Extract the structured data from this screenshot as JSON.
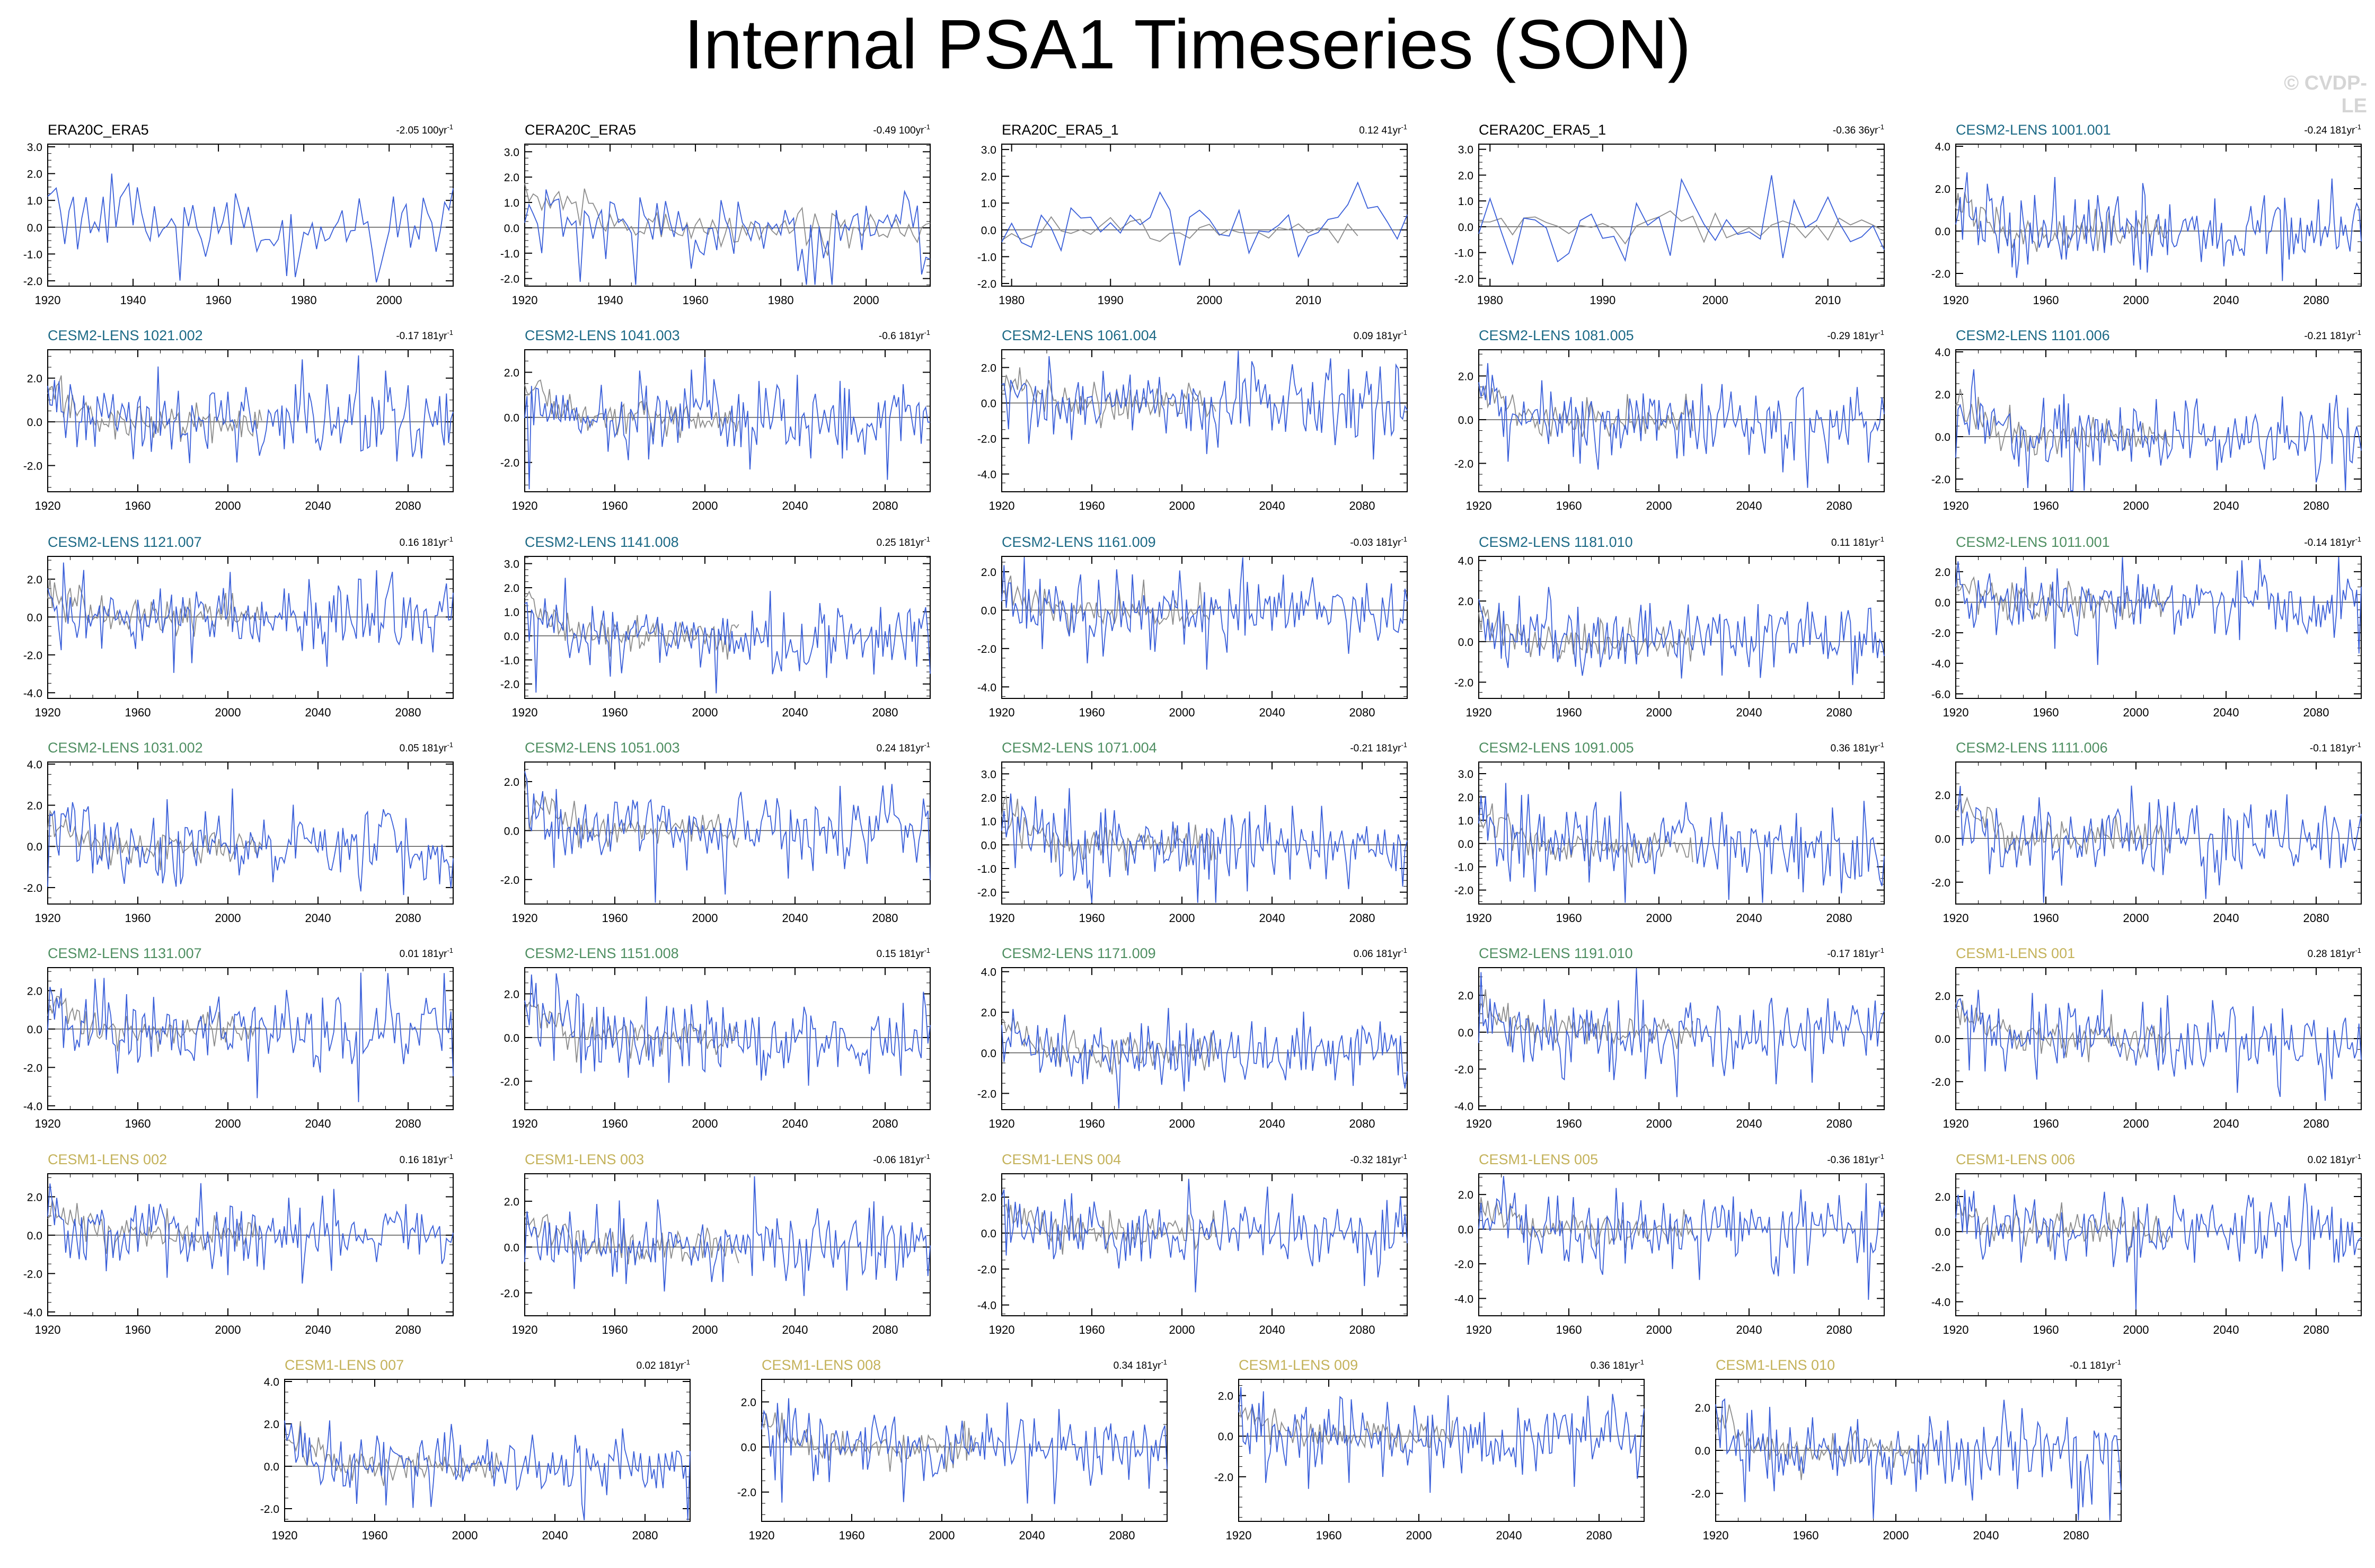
{
  "title": "Internal PSA1 Timeseries (SON)",
  "watermark": "© CVDP-LE",
  "colors": {
    "model": "#3a5fd9",
    "observed": "#8c8c8c",
    "zero": "#555555",
    "obs_label": "#000000",
    "cesm2_a": "#1d6a86",
    "cesm2_b": "#4f8f62",
    "cesm1": "#c4b25a"
  },
  "chart_data": [
    {
      "type": "line",
      "title": "ERA20C_ERA5",
      "trend": "-2.05 100yr",
      "xlim": [
        1920,
        2015
      ],
      "xticks": [
        1920,
        1940,
        1960,
        1980,
        2000
      ],
      "yticks": [
        -2.0,
        -1.0,
        0.0,
        1.0,
        2.0,
        3.0
      ],
      "ylim": [
        -2.2,
        3.1
      ],
      "gray": false
    },
    {
      "type": "line",
      "title": "CERA20C_ERA5",
      "trend": "-0.49 100yr",
      "xlim": [
        1920,
        2015
      ],
      "xticks": [
        1920,
        1940,
        1960,
        1980,
        2000
      ],
      "yticks": [
        -2.0,
        -1.0,
        0.0,
        1.0,
        2.0,
        3.0
      ],
      "ylim": [
        -2.3,
        3.3
      ],
      "gray": true
    },
    {
      "type": "line",
      "title": "ERA20C_ERA5_1",
      "trend": "0.12 41yr",
      "xlim": [
        1979,
        2020
      ],
      "xticks": [
        1980,
        1990,
        2000,
        2010
      ],
      "yticks": [
        -2.0,
        -1.0,
        0.0,
        1.0,
        2.0,
        3.0
      ],
      "ylim": [
        -2.1,
        3.2
      ],
      "gray": true
    },
    {
      "type": "line",
      "title": "CERA20C_ERA5_1",
      "trend": "-0.36 36yr",
      "xlim": [
        1979,
        2015
      ],
      "xticks": [
        1980,
        1990,
        2000,
        2010
      ],
      "yticks": [
        -2.0,
        -1.0,
        0.0,
        1.0,
        2.0,
        3.0
      ],
      "ylim": [
        -2.3,
        3.2
      ],
      "gray": true
    },
    {
      "type": "line",
      "title": "CESM2-LENS 1001.001",
      "trend": "-0.24 181yr",
      "xlim": [
        1920,
        2100
      ],
      "xticks": [
        1920,
        1960,
        2000,
        2040,
        2080
      ],
      "yticks": [
        -2.0,
        0.0,
        2.0,
        4.0
      ],
      "ylim": [
        -2.6,
        4.1
      ],
      "gray": true
    },
    {
      "type": "line",
      "title": "CESM2-LENS 1021.002",
      "trend": "-0.17 181yr",
      "xlim": [
        1920,
        2100
      ],
      "xticks": [
        1920,
        1960,
        2000,
        2040,
        2080
      ],
      "yticks": [
        -2.0,
        0.0,
        2.0
      ],
      "ylim": [
        -3.2,
        3.3
      ],
      "gray": true
    },
    {
      "type": "line",
      "title": "CESM2-LENS 1041.003",
      "trend": "-0.6 181yr",
      "xlim": [
        1920,
        2100
      ],
      "xticks": [
        1920,
        1960,
        2000,
        2040,
        2080
      ],
      "yticks": [
        -2.0,
        0.0,
        2.0
      ],
      "ylim": [
        -3.3,
        3.0
      ],
      "gray": true
    },
    {
      "type": "line",
      "title": "CESM2-LENS 1061.004",
      "trend": "0.09 181yr",
      "xlim": [
        1920,
        2100
      ],
      "xticks": [
        1920,
        1960,
        2000,
        2040,
        2080
      ],
      "yticks": [
        -4.0,
        -2.0,
        0.0,
        2.0
      ],
      "ylim": [
        -5.0,
        3.0
      ],
      "gray": true
    },
    {
      "type": "line",
      "title": "CESM2-LENS 1081.005",
      "trend": "-0.29 181yr",
      "xlim": [
        1920,
        2100
      ],
      "xticks": [
        1920,
        1960,
        2000,
        2040,
        2080
      ],
      "yticks": [
        -2.0,
        0.0,
        2.0
      ],
      "ylim": [
        -3.3,
        3.2
      ],
      "gray": true
    },
    {
      "type": "line",
      "title": "CESM2-LENS 1101.006",
      "trend": "-0.21 181yr",
      "xlim": [
        1920,
        2100
      ],
      "xticks": [
        1920,
        1960,
        2000,
        2040,
        2080
      ],
      "yticks": [
        -2.0,
        0.0,
        2.0,
        4.0
      ],
      "ylim": [
        -2.6,
        4.1
      ],
      "gray": true
    },
    {
      "type": "line",
      "title": "CESM2-LENS 1121.007",
      "trend": "0.16 181yr",
      "xlim": [
        1920,
        2100
      ],
      "xticks": [
        1920,
        1960,
        2000,
        2040,
        2080
      ],
      "yticks": [
        -4.0,
        -2.0,
        0.0,
        2.0
      ],
      "ylim": [
        -4.3,
        3.2
      ],
      "gray": true
    },
    {
      "type": "line",
      "title": "CESM2-LENS 1141.008",
      "trend": "0.25 181yr",
      "xlim": [
        1920,
        2100
      ],
      "xticks": [
        1920,
        1960,
        2000,
        2040,
        2080
      ],
      "yticks": [
        -2.0,
        -1.0,
        0.0,
        1.0,
        2.0,
        3.0
      ],
      "ylim": [
        -2.6,
        3.3
      ],
      "gray": true
    },
    {
      "type": "line",
      "title": "CESM2-LENS 1161.009",
      "trend": "-0.03 181yr",
      "xlim": [
        1920,
        2100
      ],
      "xticks": [
        1920,
        1960,
        2000,
        2040,
        2080
      ],
      "yticks": [
        -4.0,
        -2.0,
        0.0,
        2.0
      ],
      "ylim": [
        -4.6,
        2.8
      ],
      "gray": true
    },
    {
      "type": "line",
      "title": "CESM2-LENS 1181.010",
      "trend": "0.11 181yr",
      "xlim": [
        1920,
        2100
      ],
      "xticks": [
        1920,
        1960,
        2000,
        2040,
        2080
      ],
      "yticks": [
        -2.0,
        0.0,
        2.0,
        4.0
      ],
      "ylim": [
        -2.8,
        4.2
      ],
      "gray": true
    },
    {
      "type": "line",
      "title": "CESM2-LENS 1011.001",
      "trend": "-0.14 181yr",
      "xlim": [
        1920,
        2100
      ],
      "xticks": [
        1920,
        1960,
        2000,
        2040,
        2080
      ],
      "yticks": [
        -6.0,
        -4.0,
        -2.0,
        0.0,
        2.0
      ],
      "ylim": [
        -6.3,
        3.0
      ],
      "gray": true
    },
    {
      "type": "line",
      "title": "CESM2-LENS 1031.002",
      "trend": "0.05 181yr",
      "xlim": [
        1920,
        2100
      ],
      "xticks": [
        1920,
        1960,
        2000,
        2040,
        2080
      ],
      "yticks": [
        -2.0,
        0.0,
        2.0,
        4.0
      ],
      "ylim": [
        -2.8,
        4.1
      ],
      "gray": true
    },
    {
      "type": "line",
      "title": "CESM2-LENS 1051.003",
      "trend": "0.24 181yr",
      "xlim": [
        1920,
        2100
      ],
      "xticks": [
        1920,
        1960,
        2000,
        2040,
        2080
      ],
      "yticks": [
        -2.0,
        0.0,
        2.0
      ],
      "ylim": [
        -3.0,
        2.8
      ],
      "gray": true
    },
    {
      "type": "line",
      "title": "CESM2-LENS 1071.004",
      "trend": "-0.21 181yr",
      "xlim": [
        1920,
        2100
      ],
      "xticks": [
        1920,
        1960,
        2000,
        2040,
        2080
      ],
      "yticks": [
        -2.0,
        -1.0,
        0.0,
        1.0,
        2.0,
        3.0
      ],
      "ylim": [
        -2.5,
        3.5
      ],
      "gray": true
    },
    {
      "type": "line",
      "title": "CESM2-LENS 1091.005",
      "trend": "0.36 181yr",
      "xlim": [
        1920,
        2100
      ],
      "xticks": [
        1920,
        1960,
        2000,
        2040,
        2080
      ],
      "yticks": [
        -2.0,
        -1.0,
        0.0,
        1.0,
        2.0,
        3.0
      ],
      "ylim": [
        -2.6,
        3.5
      ],
      "gray": true
    },
    {
      "type": "line",
      "title": "CESM2-LENS 1111.006",
      "trend": "-0.1 181yr",
      "xlim": [
        1920,
        2100
      ],
      "xticks": [
        1920,
        1960,
        2000,
        2040,
        2080
      ],
      "yticks": [
        -2.0,
        0.0,
        2.0
      ],
      "ylim": [
        -3.0,
        3.5
      ],
      "gray": true
    },
    {
      "type": "line",
      "title": "CESM2-LENS 1131.007",
      "trend": "0.01 181yr",
      "xlim": [
        1920,
        2100
      ],
      "xticks": [
        1920,
        1960,
        2000,
        2040,
        2080
      ],
      "yticks": [
        -4.0,
        -2.0,
        0.0,
        2.0
      ],
      "ylim": [
        -4.2,
        3.2
      ],
      "gray": true
    },
    {
      "type": "line",
      "title": "CESM2-LENS 1151.008",
      "trend": "0.15 181yr",
      "xlim": [
        1920,
        2100
      ],
      "xticks": [
        1920,
        1960,
        2000,
        2040,
        2080
      ],
      "yticks": [
        -2.0,
        0.0,
        2.0
      ],
      "ylim": [
        -3.3,
        3.2
      ],
      "gray": true
    },
    {
      "type": "line",
      "title": "CESM2-LENS 1171.009",
      "trend": "0.06 181yr",
      "xlim": [
        1920,
        2100
      ],
      "xticks": [
        1920,
        1960,
        2000,
        2040,
        2080
      ],
      "yticks": [
        -2.0,
        0.0,
        2.0,
        4.0
      ],
      "ylim": [
        -2.8,
        4.2
      ],
      "gray": true
    },
    {
      "type": "line",
      "title": "CESM2-LENS 1191.010",
      "trend": "-0.17 181yr",
      "xlim": [
        1920,
        2100
      ],
      "xticks": [
        1920,
        1960,
        2000,
        2040,
        2080
      ],
      "yticks": [
        -4.0,
        -2.0,
        0.0,
        2.0
      ],
      "ylim": [
        -4.2,
        3.5
      ],
      "gray": true
    },
    {
      "type": "line",
      "title": "CESM1-LENS 001",
      "trend": "0.28 181yr",
      "xlim": [
        1920,
        2100
      ],
      "xticks": [
        1920,
        1960,
        2000,
        2040,
        2080
      ],
      "yticks": [
        -2.0,
        0.0,
        2.0
      ],
      "ylim": [
        -3.3,
        3.3
      ],
      "gray": true
    },
    {
      "type": "line",
      "title": "CESM1-LENS 002",
      "trend": "0.16 181yr",
      "xlim": [
        1920,
        2100
      ],
      "xticks": [
        1920,
        1960,
        2000,
        2040,
        2080
      ],
      "yticks": [
        -4.0,
        -2.0,
        0.0,
        2.0
      ],
      "ylim": [
        -4.2,
        3.2
      ],
      "gray": true
    },
    {
      "type": "line",
      "title": "CESM1-LENS 003",
      "trend": "-0.06 181yr",
      "xlim": [
        1920,
        2100
      ],
      "xticks": [
        1920,
        1960,
        2000,
        2040,
        2080
      ],
      "yticks": [
        -2.0,
        0.0,
        2.0
      ],
      "ylim": [
        -3.0,
        3.2
      ],
      "gray": true
    },
    {
      "type": "line",
      "title": "CESM1-LENS 004",
      "trend": "-0.32 181yr",
      "xlim": [
        1920,
        2100
      ],
      "xticks": [
        1920,
        1960,
        2000,
        2040,
        2080
      ],
      "yticks": [
        -4.0,
        -2.0,
        0.0,
        2.0
      ],
      "ylim": [
        -4.6,
        3.3
      ],
      "gray": true
    },
    {
      "type": "line",
      "title": "CESM1-LENS 005",
      "trend": "-0.36 181yr",
      "xlim": [
        1920,
        2100
      ],
      "xticks": [
        1920,
        1960,
        2000,
        2040,
        2080
      ],
      "yticks": [
        -4.0,
        -2.0,
        0.0,
        2.0
      ],
      "ylim": [
        -5.0,
        3.2
      ],
      "gray": true
    },
    {
      "type": "line",
      "title": "CESM1-LENS 006",
      "trend": "0.02 181yr",
      "xlim": [
        1920,
        2100
      ],
      "xticks": [
        1920,
        1960,
        2000,
        2040,
        2080
      ],
      "yticks": [
        -4.0,
        -2.0,
        0.0,
        2.0
      ],
      "ylim": [
        -4.8,
        3.3
      ],
      "gray": true
    },
    {
      "type": "line",
      "title": "CESM1-LENS 007",
      "trend": "0.02 181yr",
      "xlim": [
        1920,
        2100
      ],
      "xticks": [
        1920,
        1960,
        2000,
        2040,
        2080
      ],
      "yticks": [
        -2.0,
        0.0,
        2.0,
        4.0
      ],
      "ylim": [
        -2.6,
        4.1
      ],
      "gray": true
    },
    {
      "type": "line",
      "title": "CESM1-LENS 008",
      "trend": "0.34 181yr",
      "xlim": [
        1920,
        2100
      ],
      "xticks": [
        1920,
        1960,
        2000,
        2040,
        2080
      ],
      "yticks": [
        -2.0,
        0.0,
        2.0
      ],
      "ylim": [
        -3.3,
        3.0
      ],
      "gray": true
    },
    {
      "type": "line",
      "title": "CESM1-LENS 009",
      "trend": "0.36 181yr",
      "xlim": [
        1920,
        2100
      ],
      "xticks": [
        1920,
        1960,
        2000,
        2040,
        2080
      ],
      "yticks": [
        -2.0,
        0.0,
        2.0
      ],
      "ylim": [
        -4.2,
        2.8
      ],
      "gray": true
    },
    {
      "type": "line",
      "title": "CESM1-LENS 010",
      "trend": "-0.1 181yr",
      "xlim": [
        1920,
        2100
      ],
      "xticks": [
        1920,
        1960,
        2000,
        2040,
        2080
      ],
      "yticks": [
        -2.0,
        0.0,
        2.0
      ],
      "ylim": [
        -3.3,
        3.3
      ],
      "gray": true
    }
  ]
}
